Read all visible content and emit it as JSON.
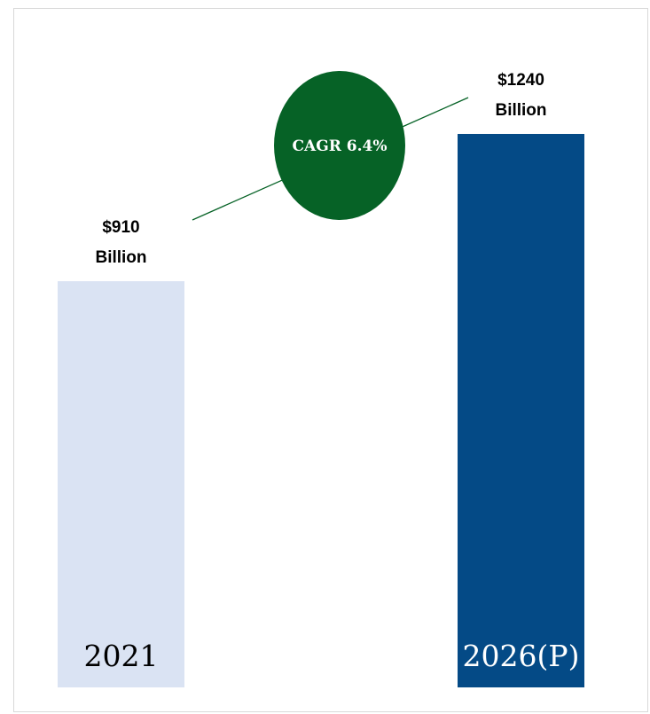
{
  "chart_data": {
    "type": "bar",
    "title": "",
    "categories": [
      "2021",
      "2026(P)"
    ],
    "values": [
      910,
      1240
    ],
    "unit": "Billion",
    "currency": "$",
    "value_labels": [
      {
        "amount": "$910",
        "unit": "Billion"
      },
      {
        "amount": "$1240",
        "unit": "Billion"
      }
    ],
    "annotation": "CAGR 6.4%",
    "ylim": [
      0,
      1240
    ],
    "grid": false,
    "legend": "none",
    "colors": {
      "bar_1": "#dae3f3",
      "bar_2": "#044a86",
      "cagr_fill": "#066226",
      "line": "#066226",
      "cat_text_light": "#000000",
      "cat_text_dark": "#ffffff"
    }
  }
}
